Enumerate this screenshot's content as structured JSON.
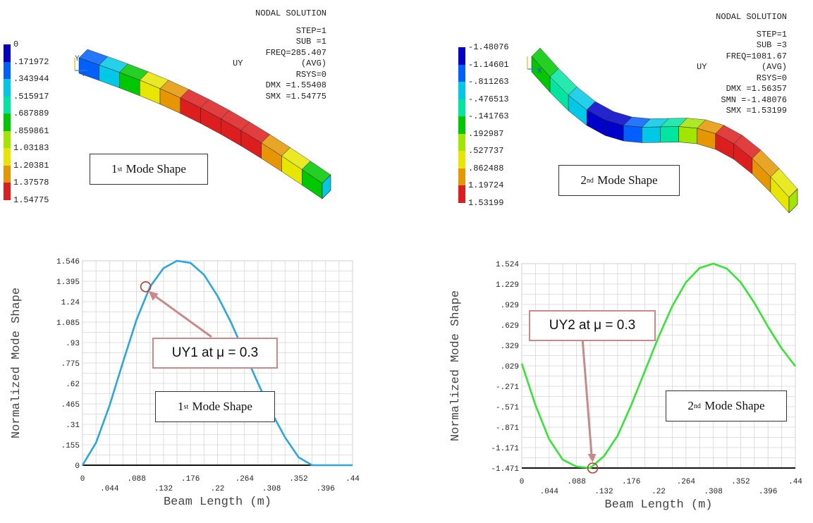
{
  "colors": {
    "contour": [
      "#0000c8",
      "#0060ff",
      "#00c8e6",
      "#00e6a0",
      "#00c800",
      "#a0e600",
      "#e6e600",
      "#e69600",
      "#dc1e1e"
    ],
    "mode1_line": "#2aa6e0",
    "mode2_line": "#33e633",
    "callout_border": "#c9898a",
    "marker": "#c0392b"
  },
  "top_left": {
    "legend_values": [
      "0",
      ".171972",
      ".343944",
      ".515917",
      ".687889",
      ".859861",
      "1.03183",
      "1.20381",
      "1.37578",
      "1.54775"
    ],
    "info": {
      "title": "NODAL SOLUTION",
      "step": "STEP=1",
      "sub": "SUB =1",
      "freq": "FREQ=285.407",
      "uy": "UY",
      "avg": "(AVG)",
      "rsys": "RSYS=0",
      "dmx": "DMX =1.55408",
      "smx": "SMX =1.54775"
    },
    "mode_label_base": "1",
    "mode_label_sup": "st",
    "mode_label_rest": "Mode Shape",
    "axis_glyph_x": "X",
    "axis_glyph_y": "Y"
  },
  "top_right": {
    "legend_values": [
      "-1.48076",
      "-1.14601",
      "-.811263",
      "-.476513",
      "-.141763",
      ".192987",
      ".527737",
      ".862488",
      "1.19724",
      "1.53199"
    ],
    "info": {
      "title": "NODAL SOLUTION",
      "step": "STEP=1",
      "sub": "SUB =3",
      "freq": "FREQ=1081.67",
      "uy": "UY",
      "avg": "(AVG)",
      "rsys": "RSYS=0",
      "dmx": "DMX =1.56357",
      "smn": "SMN =-1.48076",
      "smx": "SMX =1.53199"
    },
    "mode_label_base": "2",
    "mode_label_sup": "nd",
    "mode_label_rest": "Mode Shape",
    "axis_glyph_x": "X"
  },
  "callouts": {
    "left": "UY1 at μ = 0.3",
    "right": "UY2 at μ = 0.3"
  },
  "bottom_labels": {
    "left_base": "1",
    "left_sup": "st",
    "left_rest": "Mode Shape",
    "right_base": "2",
    "right_sup": "nd",
    "right_rest": "Mode Shape"
  },
  "chart_data": [
    {
      "type": "line",
      "title": "",
      "xlabel": "Beam Length (m)",
      "ylabel": "Normalized Mode Shape",
      "xlim": [
        0,
        0.44
      ],
      "ylim": [
        0,
        1.546
      ],
      "x_ticks": [
        "0",
        ".044",
        ".088",
        ".132",
        ".176",
        ".22",
        ".264",
        ".308",
        ".352",
        ".396",
        ".44"
      ],
      "y_ticks": [
        "0",
        ".155",
        ".31",
        ".465",
        ".62",
        ".775",
        ".93",
        "1.085",
        "1.24",
        "1.395",
        "1.546"
      ],
      "grid": true,
      "series": [
        {
          "x": [
            0,
            0.022,
            0.044,
            0.066,
            0.088,
            0.11,
            0.132,
            0.154,
            0.176,
            0.198,
            0.22,
            0.242,
            0.264,
            0.286,
            0.308,
            0.33,
            0.352,
            0.374,
            0.396,
            0.418,
            0.44
          ],
          "values": [
            0,
            0.17,
            0.45,
            0.78,
            1.1,
            1.35,
            1.49,
            1.546,
            1.53,
            1.44,
            1.28,
            1.08,
            0.85,
            0.62,
            0.4,
            0.21,
            0.06,
            0.0,
            0.0,
            0.0,
            0.0
          ]
        }
      ],
      "highlight_point": {
        "x": 0.103,
        "y": 1.35
      }
    },
    {
      "type": "line",
      "title": "",
      "xlabel": "Beam Length (m)",
      "ylabel": "Normalized Mode Shape",
      "xlim": [
        0,
        0.44
      ],
      "ylim": [
        -1.471,
        1.524
      ],
      "x_ticks": [
        "0",
        ".044",
        ".088",
        ".132",
        ".176",
        ".22",
        ".264",
        ".308",
        ".352",
        ".396",
        ".44"
      ],
      "y_ticks": [
        "-1.471",
        "-1.171",
        "-.871",
        "-.571",
        "-.271",
        ".029",
        ".329",
        ".629",
        ".929",
        "1.229",
        "1.524"
      ],
      "grid": true,
      "series": [
        {
          "x": [
            0,
            0.022,
            0.044,
            0.066,
            0.088,
            0.11,
            0.132,
            0.154,
            0.176,
            0.198,
            0.22,
            0.242,
            0.264,
            0.286,
            0.308,
            0.33,
            0.352,
            0.374,
            0.396,
            0.418,
            0.44
          ],
          "values": [
            0.06,
            -0.55,
            -1.05,
            -1.35,
            -1.45,
            -1.471,
            -1.3,
            -1.0,
            -0.55,
            -0.05,
            0.45,
            0.9,
            1.25,
            1.46,
            1.524,
            1.45,
            1.25,
            0.95,
            0.6,
            0.28,
            0.02
          ]
        }
      ],
      "highlight_point": {
        "x": 0.114,
        "y": -1.471
      }
    }
  ]
}
